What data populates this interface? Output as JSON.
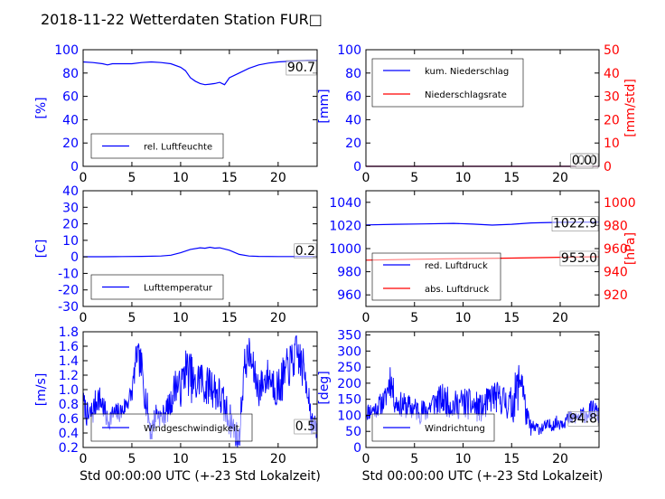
{
  "title": "2018-11-22 Wetterdaten Station FUR□",
  "colors": {
    "left": "#0000ff",
    "right": "#ff0000",
    "frame": "#000000"
  },
  "chart_data": [
    {
      "id": "humidity",
      "type": "line",
      "xlim": [
        0,
        24
      ],
      "xticks": [
        0,
        5,
        10,
        15,
        20
      ],
      "ylim": [
        0,
        100
      ],
      "yticks": [
        0,
        20,
        40,
        60,
        80,
        100
      ],
      "ylabel": "[%]",
      "legend": [
        "rel. Luftfeuchte"
      ],
      "legend_position": "lower-left",
      "annotation": "90.7",
      "series": [
        {
          "name": "rel. Luftfeuchte",
          "color": "#0000ff",
          "x": [
            0,
            1,
            2,
            2.5,
            3,
            4,
            5,
            6,
            7,
            8,
            9,
            10,
            10.5,
            11,
            11.5,
            12,
            12.5,
            13,
            13.5,
            14,
            14.5,
            15,
            16,
            17,
            18,
            19,
            20,
            21,
            22,
            23,
            24
          ],
          "y": [
            89.5,
            89,
            88,
            87,
            88,
            88,
            88,
            89,
            89.5,
            89,
            88,
            85,
            82,
            76,
            73,
            71,
            70,
            70.5,
            71,
            72,
            70,
            76,
            80,
            84,
            87,
            88.5,
            89.5,
            90,
            90.5,
            90.7,
            90.7
          ]
        }
      ]
    },
    {
      "id": "precip",
      "type": "line",
      "xlim": [
        0,
        24
      ],
      "xticks": [
        0,
        5,
        10,
        15,
        20
      ],
      "ylim": [
        0,
        100
      ],
      "yticks": [
        0,
        20,
        40,
        60,
        80,
        100
      ],
      "ylabel": "[mm]",
      "y2lim": [
        0,
        50
      ],
      "y2ticks": [
        0,
        10,
        20,
        30,
        40,
        50
      ],
      "y2label": "[mm/std]",
      "legend": [
        "kum. Niederschlag",
        "Niederschlagsrate"
      ],
      "legend_position": "upper-left",
      "annotation": "0.0",
      "annotation2": "0.0",
      "series": [
        {
          "name": "kum. Niederschlag",
          "color": "#0000ff",
          "axis": "left",
          "x": [
            0,
            24
          ],
          "y": [
            0,
            0
          ]
        },
        {
          "name": "Niederschlagsrate",
          "color": "#ff0000",
          "axis": "right",
          "x": [
            0,
            24
          ],
          "y": [
            0,
            0
          ]
        }
      ]
    },
    {
      "id": "temperature",
      "type": "line",
      "xlim": [
        0,
        24
      ],
      "xticks": [
        0,
        5,
        10,
        15,
        20
      ],
      "ylim": [
        -30,
        40
      ],
      "yticks": [
        -30,
        -20,
        -10,
        0,
        10,
        20,
        30,
        40
      ],
      "ylabel": "[C]",
      "legend": [
        "Lufttemperatur"
      ],
      "legend_position": "lower-left",
      "annotation": "0.2",
      "series": [
        {
          "name": "Lufttemperatur",
          "color": "#0000ff",
          "x": [
            0,
            2,
            4,
            6,
            8,
            9,
            10,
            11,
            12,
            12.5,
            13,
            13.5,
            14,
            15,
            16,
            17,
            18,
            20,
            22,
            24
          ],
          "y": [
            0.1,
            0.1,
            0.2,
            0.3,
            0.5,
            1,
            2.5,
            4.5,
            5.5,
            5.2,
            5.8,
            5.3,
            5.5,
            4,
            1.5,
            0.5,
            0.3,
            0.2,
            0.2,
            0.2
          ]
        }
      ]
    },
    {
      "id": "pressure",
      "type": "line",
      "xlim": [
        0,
        24
      ],
      "xticks": [
        0,
        5,
        10,
        15,
        20
      ],
      "ylim": [
        950,
        1050
      ],
      "yticks": [
        960,
        980,
        1000,
        1020,
        1040
      ],
      "ylabel": "",
      "y2lim": [
        910,
        1010
      ],
      "y2ticks": [
        920,
        940,
        960,
        980,
        1000
      ],
      "y2label": "[hPa]",
      "legend": [
        "red. Luftdruck",
        "abs. Luftdruck"
      ],
      "legend_position": "lower-left",
      "annotation": "1022.9",
      "annotation2": "953.0",
      "series": [
        {
          "name": "red. Luftdruck",
          "color": "#0000ff",
          "axis": "left",
          "x": [
            0,
            3,
            6,
            9,
            11,
            13,
            15,
            17,
            20,
            24
          ],
          "y": [
            1020.5,
            1021,
            1021.3,
            1021.8,
            1021.2,
            1020.3,
            1021,
            1022.2,
            1022.7,
            1022.9
          ]
        },
        {
          "name": "abs. Luftdruck",
          "color": "#ff0000",
          "axis": "right",
          "x": [
            0,
            5,
            10,
            15,
            20,
            24
          ],
          "y": [
            950,
            950.8,
            951.3,
            951.8,
            952.5,
            953.0
          ]
        }
      ]
    },
    {
      "id": "windspeed",
      "type": "line",
      "xlim": [
        0,
        24
      ],
      "xticks": [
        0,
        5,
        10,
        15,
        20
      ],
      "ylim": [
        0.2,
        1.8
      ],
      "yticks": [
        0.2,
        0.4,
        0.6,
        0.8,
        1.0,
        1.2,
        1.4,
        1.6,
        1.8
      ],
      "ylabel": "[m/s]",
      "xlabel": "Std 00:00:00 UTC (+-23 Std Lokalzeit)",
      "legend": [
        "Windgeschwindigkeit"
      ],
      "legend_position": "lower-center",
      "annotation": "0.5",
      "series": [
        {
          "name": "Windgeschwindigkeit",
          "color": "#0000ff",
          "noisy": true,
          "seed": 7,
          "x": [
            0,
            0.5,
            1,
            1.5,
            2,
            2.5,
            3,
            4,
            5,
            5.5,
            6,
            6.5,
            7,
            7.5,
            8,
            9,
            9.5,
            10,
            10.5,
            11,
            11.5,
            12,
            12.5,
            13,
            14,
            15,
            15.5,
            16,
            16.5,
            17,
            18,
            19,
            20,
            21,
            22,
            23,
            23.5,
            24
          ],
          "y": [
            0.85,
            0.6,
            0.7,
            0.9,
            0.8,
            0.55,
            0.65,
            0.7,
            0.95,
            1.5,
            1.3,
            0.8,
            0.4,
            0.7,
            0.6,
            0.8,
            1.1,
            1.0,
            1.3,
            1.2,
            1.0,
            1.2,
            1.0,
            1.1,
            0.9,
            0.6,
            0.45,
            0.3,
            1.3,
            1.5,
            1.0,
            1.2,
            1.0,
            1.3,
            1.5,
            1.1,
            0.5,
            0.45
          ],
          "amp": [
            0.15,
            0.2,
            0.2,
            0.2,
            0.2,
            0.15,
            0.15,
            0.15,
            0.15,
            0.2,
            0.25,
            0.25,
            0.2,
            0.15,
            0.15,
            0.2,
            0.25,
            0.25,
            0.3,
            0.35,
            0.3,
            0.3,
            0.25,
            0.3,
            0.3,
            0.25,
            0.2,
            0.2,
            0.25,
            0.25,
            0.25,
            0.25,
            0.3,
            0.3,
            0.3,
            0.3,
            0.2,
            0.15
          ]
        }
      ]
    },
    {
      "id": "winddir",
      "type": "line",
      "xlim": [
        0,
        24
      ],
      "xticks": [
        0,
        5,
        10,
        15,
        20
      ],
      "ylim": [
        0,
        360
      ],
      "yticks": [
        0,
        50,
        100,
        150,
        200,
        250,
        300,
        350
      ],
      "ylabel": "[deg]",
      "xlabel": "Std 00:00:00 UTC (+-23 Std Lokalzeit)",
      "legend": [
        "Windrichtung"
      ],
      "legend_position": "lower-left",
      "annotation": "94.8",
      "series": [
        {
          "name": "Windrichtung",
          "color": "#0000ff",
          "noisy": true,
          "seed": 11,
          "x": [
            0,
            1,
            2,
            2.5,
            3,
            4,
            5,
            6,
            7,
            8,
            9,
            10,
            11,
            12,
            13,
            14,
            15,
            15.5,
            16,
            16.5,
            17,
            18,
            19,
            20,
            21,
            22,
            23,
            23.5,
            24
          ],
          "y": [
            110,
            120,
            150,
            220,
            140,
            130,
            120,
            110,
            140,
            150,
            130,
            140,
            130,
            120,
            160,
            150,
            130,
            170,
            230,
            100,
            60,
            60,
            70,
            80,
            90,
            95,
            110,
            120,
            95
          ],
          "amp": [
            30,
            30,
            40,
            60,
            40,
            40,
            40,
            40,
            45,
            50,
            45,
            50,
            50,
            45,
            50,
            50,
            60,
            80,
            70,
            40,
            25,
            20,
            20,
            25,
            25,
            25,
            30,
            35,
            25
          ]
        }
      ]
    }
  ]
}
